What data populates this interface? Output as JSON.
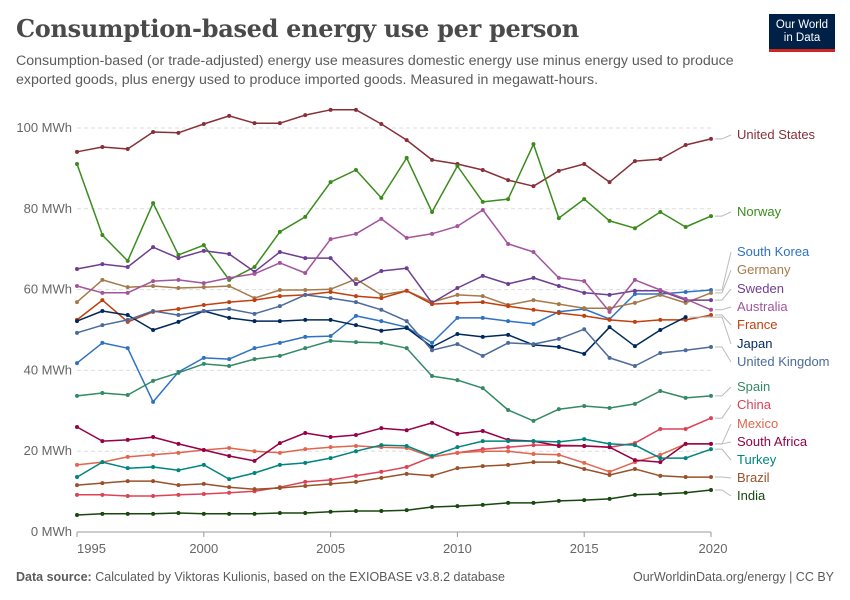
{
  "header": {
    "title": "Consumption-based energy use per person",
    "subtitle": "Consumption-based (or trade-adjusted) energy use measures domestic energy use minus energy used to produce exported goods, plus energy used to produce imported goods. Measured in megawatt-hours.",
    "logo_line1": "Our World",
    "logo_line2": "in Data"
  },
  "footer": {
    "source_label": "Data source:",
    "source_text": "Calculated by Viktoras Kulionis, based on the EXIOBASE v3.8.2 database",
    "right": "OurWorldinData.org/energy | CC BY"
  },
  "chart_data": {
    "type": "line",
    "title": "Consumption-based energy use per person",
    "xlabel": "",
    "ylabel": "",
    "x": [
      1995,
      1996,
      1997,
      1998,
      1999,
      2000,
      2001,
      2002,
      2003,
      2004,
      2005,
      2006,
      2007,
      2008,
      2009,
      2010,
      2011,
      2012,
      2013,
      2014,
      2015,
      2016,
      2017,
      2018,
      2019,
      2020
    ],
    "xlim": [
      1995,
      2020
    ],
    "ylim": [
      0,
      100
    ],
    "x_ticks": [
      "1995",
      "2000",
      "2005",
      "2010",
      "2015",
      "2020"
    ],
    "y_ticks": [
      {
        "value": 0,
        "label": "0 MWh"
      },
      {
        "value": 20,
        "label": "20 MWh"
      },
      {
        "value": 40,
        "label": "40 MWh"
      },
      {
        "value": 60,
        "label": "60 MWh"
      },
      {
        "value": 80,
        "label": "80 MWh"
      },
      {
        "value": 100,
        "label": "100 MWh"
      }
    ],
    "grid": true,
    "legend": "right-end-labels",
    "series": [
      {
        "name": "United States",
        "color": "#883039",
        "values": [
          94.1,
          95.3,
          94.8,
          99.0,
          98.8,
          101.0,
          103.0,
          101.2,
          101.2,
          103.2,
          104.5,
          104.5,
          101.0,
          97.0,
          92.1,
          91.1,
          89.6,
          87.1,
          85.6,
          89.4,
          91.1,
          86.6,
          91.8,
          92.3,
          95.8,
          97.3
        ]
      },
      {
        "name": "Norway",
        "color": "#3b8c1c",
        "values": [
          91.1,
          73.5,
          67.1,
          81.4,
          68.6,
          71.0,
          62.4,
          65.6,
          74.3,
          78.0,
          86.6,
          89.6,
          82.7,
          92.6,
          79.2,
          90.6,
          81.7,
          82.4,
          96.0,
          77.7,
          82.4,
          77.0,
          75.2,
          79.2,
          75.5,
          78.2
        ]
      },
      {
        "name": "South Korea",
        "color": "#2f72c4",
        "values": [
          41.8,
          46.8,
          45.5,
          32.2,
          39.6,
          43.1,
          42.8,
          45.5,
          46.8,
          48.3,
          48.5,
          53.5,
          52.2,
          50.7,
          46.8,
          53.0,
          53.0,
          52.2,
          51.5,
          54.5,
          55.2,
          52.7,
          58.9,
          58.9,
          59.4,
          59.9
        ]
      },
      {
        "name": "Germany",
        "color": "#a57a4a",
        "values": [
          56.9,
          62.4,
          60.6,
          60.9,
          60.4,
          60.6,
          60.9,
          57.9,
          59.9,
          59.9,
          60.1,
          62.6,
          58.7,
          59.7,
          56.9,
          58.7,
          58.4,
          56.2,
          57.4,
          56.4,
          55.4,
          55.4,
          56.7,
          58.7,
          56.7,
          59.2
        ]
      },
      {
        "name": "Sweden",
        "color": "#6d3e91",
        "values": [
          65.1,
          66.3,
          65.6,
          70.5,
          67.8,
          69.6,
          68.8,
          64.4,
          69.3,
          67.8,
          67.8,
          61.4,
          64.6,
          65.3,
          56.7,
          60.4,
          63.4,
          61.4,
          62.9,
          60.9,
          59.2,
          58.7,
          59.7,
          59.7,
          57.4,
          57.4
        ]
      },
      {
        "name": "Australia",
        "color": "#a2559c",
        "values": [
          60.9,
          59.2,
          59.2,
          62.1,
          62.4,
          61.6,
          62.9,
          63.9,
          66.6,
          64.1,
          72.5,
          73.8,
          77.5,
          72.8,
          73.8,
          75.7,
          79.7,
          71.3,
          69.3,
          62.9,
          62.1,
          54.5,
          62.4,
          59.9,
          57.7,
          55.0
        ]
      },
      {
        "name": "France",
        "color": "#c0400f",
        "values": [
          52.5,
          57.4,
          52.0,
          54.5,
          55.2,
          56.2,
          56.9,
          57.4,
          58.4,
          58.7,
          59.4,
          58.4,
          57.9,
          59.7,
          56.4,
          56.7,
          56.9,
          55.9,
          55.0,
          54.2,
          53.5,
          52.5,
          52.0,
          52.5,
          52.5,
          53.7
        ]
      },
      {
        "name": "Japan",
        "color": "#00295b",
        "values": [
          52.2,
          54.7,
          53.7,
          50.0,
          52.0,
          54.7,
          53.0,
          52.2,
          52.2,
          52.5,
          52.5,
          51.2,
          49.8,
          50.5,
          45.8,
          49.0,
          48.3,
          48.8,
          46.3,
          45.8,
          44.1,
          50.7,
          46.0,
          50.0,
          53.2,
          null
        ]
      },
      {
        "name": "United Kingdom",
        "color": "#4c6a9c",
        "values": [
          49.3,
          51.2,
          52.5,
          54.7,
          53.7,
          54.7,
          55.2,
          54.0,
          55.9,
          58.7,
          57.9,
          56.9,
          55.0,
          52.2,
          45.0,
          46.5,
          43.6,
          46.8,
          46.5,
          47.8,
          50.2,
          43.1,
          41.1,
          44.3,
          45.0,
          45.8
        ]
      },
      {
        "name": "Spain",
        "color": "#348a66",
        "values": [
          33.7,
          34.4,
          33.9,
          37.4,
          39.4,
          41.6,
          41.1,
          42.8,
          43.6,
          45.5,
          47.3,
          47.0,
          46.8,
          45.5,
          38.6,
          37.6,
          35.6,
          30.2,
          27.5,
          30.4,
          31.2,
          30.7,
          31.7,
          34.9,
          33.2,
          33.7
        ]
      },
      {
        "name": "China",
        "color": "#dd4257",
        "values": [
          9.2,
          9.2,
          8.9,
          8.9,
          9.2,
          9.4,
          9.7,
          10.1,
          11.1,
          12.4,
          12.9,
          13.9,
          14.9,
          16.1,
          18.6,
          19.6,
          20.5,
          21.0,
          21.5,
          21.5,
          21.3,
          21.0,
          22.0,
          25.5,
          25.5,
          28.2
        ]
      },
      {
        "name": "Mexico",
        "color": "#e0664f",
        "values": [
          16.6,
          17.3,
          18.6,
          19.1,
          19.6,
          20.3,
          20.8,
          20.0,
          19.6,
          20.5,
          21.0,
          21.3,
          21.0,
          20.8,
          18.6,
          19.6,
          20.0,
          20.0,
          19.3,
          19.1,
          17.1,
          14.9,
          17.3,
          19.1,
          21.8,
          21.8
        ]
      },
      {
        "name": "South Africa",
        "color": "#970046",
        "values": [
          26.0,
          22.5,
          22.8,
          23.5,
          21.8,
          20.3,
          18.8,
          17.6,
          22.0,
          24.5,
          23.5,
          24.0,
          25.7,
          25.2,
          27.0,
          24.3,
          25.0,
          22.8,
          22.5,
          21.3,
          21.3,
          21.0,
          17.8,
          17.3,
          21.8,
          21.8
        ]
      },
      {
        "name": "Turkey",
        "color": "#00847e",
        "values": [
          13.6,
          17.3,
          15.8,
          16.1,
          15.3,
          16.6,
          13.1,
          14.6,
          16.6,
          17.1,
          18.3,
          20.0,
          21.5,
          21.3,
          18.8,
          21.0,
          22.5,
          22.5,
          22.5,
          22.3,
          23.0,
          21.8,
          21.5,
          18.3,
          18.3,
          20.5
        ]
      },
      {
        "name": "Brazil",
        "color": "#9a5129",
        "values": [
          11.6,
          12.1,
          12.6,
          12.6,
          11.6,
          11.9,
          11.1,
          10.6,
          10.9,
          11.4,
          11.9,
          12.4,
          13.4,
          14.4,
          13.9,
          15.8,
          16.3,
          16.6,
          17.3,
          17.3,
          15.6,
          14.1,
          15.6,
          13.9,
          13.6,
          13.6
        ]
      },
      {
        "name": "India",
        "color": "#18470f",
        "values": [
          4.2,
          4.5,
          4.5,
          4.5,
          4.7,
          4.5,
          4.5,
          4.5,
          4.7,
          4.7,
          5.0,
          5.2,
          5.2,
          5.4,
          6.2,
          6.4,
          6.7,
          7.2,
          7.2,
          7.7,
          7.9,
          8.2,
          9.2,
          9.4,
          9.7,
          10.4
        ]
      }
    ]
  }
}
